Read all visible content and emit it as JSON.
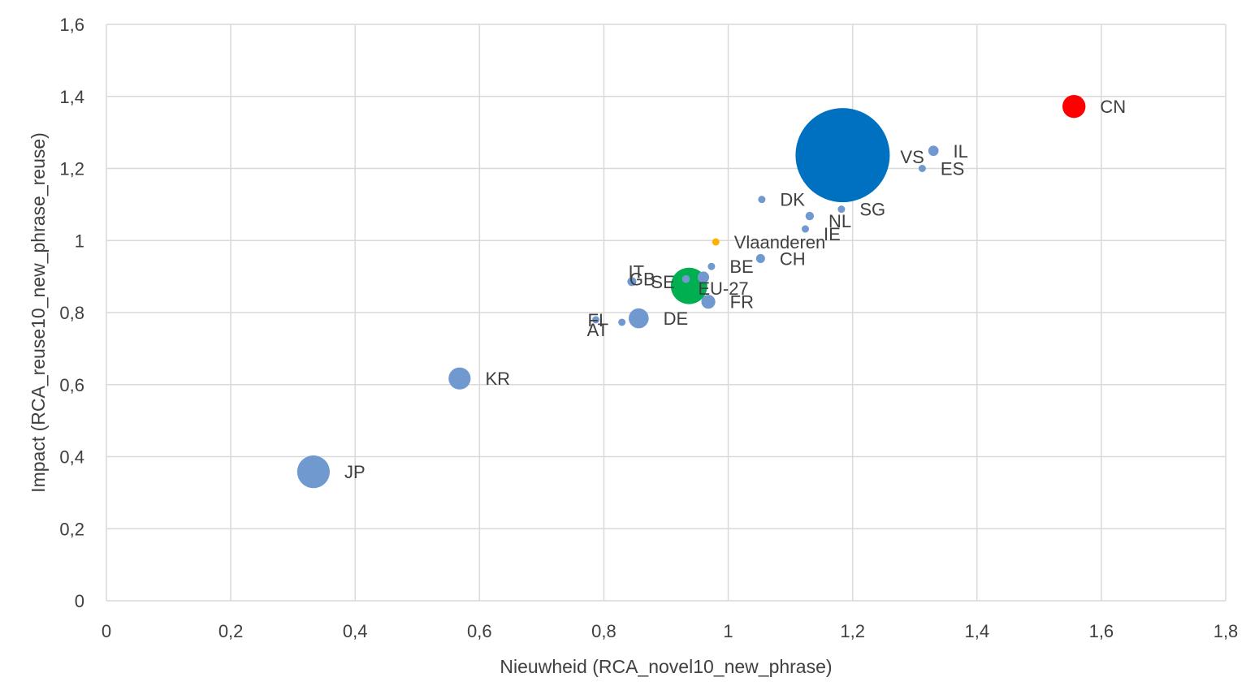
{
  "chart_data": {
    "type": "bubble",
    "title": "",
    "xlabel": "Nieuwheid (RCA_novel10_new_phrase)",
    "ylabel": "Impact (RCA_reuse10_new_phrase_reuse)",
    "xlim": [
      0,
      1.8
    ],
    "ylim": [
      0,
      1.6
    ],
    "xticks": [
      0,
      0.2,
      0.4,
      0.6,
      0.8,
      1,
      1.2,
      1.4,
      1.6,
      1.8
    ],
    "yticks": [
      0,
      0.2,
      0.4,
      0.6,
      0.8,
      1,
      1.2,
      1.4,
      1.6
    ],
    "xtick_labels": [
      "0",
      "0,2",
      "0,4",
      "0,6",
      "0,8",
      "1",
      "1,2",
      "1,4",
      "1,6",
      "1,8"
    ],
    "ytick_labels": [
      "0",
      "0,2",
      "0,4",
      "0,6",
      "0,8",
      "1",
      "1,2",
      "1,4",
      "1,6"
    ],
    "grid": true,
    "colors": {
      "default": "#7099cf",
      "VS": "#0070c0",
      "EU-27": "#00b050",
      "CN": "#ff0000",
      "Vlaanderen": "#ffb000",
      "grid": "#d9d9d9",
      "text": "#404040"
    },
    "points": [
      {
        "label": "VS",
        "x": 1.184,
        "y": 1.237,
        "size": 100
      },
      {
        "label": "EU-27",
        "x": 0.937,
        "y": 0.874,
        "size": 15
      },
      {
        "label": "CN",
        "x": 1.556,
        "y": 1.372,
        "size": 6
      },
      {
        "label": "JP",
        "x": 0.333,
        "y": 0.358,
        "size": 12
      },
      {
        "label": "KR",
        "x": 0.568,
        "y": 0.617,
        "size": 5.5
      },
      {
        "label": "DE",
        "x": 0.856,
        "y": 0.784,
        "size": 4.5
      },
      {
        "label": "FR",
        "x": 0.968,
        "y": 0.83,
        "size": 2.2
      },
      {
        "label": "GB",
        "x": 0.96,
        "y": 0.898,
        "size": 1.5
      },
      {
        "label": "IL",
        "x": 1.33,
        "y": 1.249,
        "size": 1.2
      },
      {
        "label": "CH",
        "x": 1.052,
        "y": 0.95,
        "size": 0.9
      },
      {
        "label": "NL",
        "x": 1.131,
        "y": 1.068,
        "size": 0.8
      },
      {
        "label": "SE",
        "x": 0.845,
        "y": 0.886,
        "size": 0.9
      },
      {
        "label": "IT",
        "x": 0.932,
        "y": 0.893,
        "size": 0.7
      },
      {
        "label": "BE",
        "x": 0.973,
        "y": 0.928,
        "size": 0.4
      },
      {
        "label": "DK",
        "x": 1.054,
        "y": 1.114,
        "size": 0.3
      },
      {
        "label": "SG",
        "x": 1.182,
        "y": 1.087,
        "size": 0.25
      },
      {
        "label": "ES",
        "x": 1.312,
        "y": 1.2,
        "size": 0.3
      },
      {
        "label": "IE",
        "x": 1.124,
        "y": 1.032,
        "size": 0.25
      },
      {
        "label": "FI",
        "x": 0.787,
        "y": 0.78,
        "size": 0.35
      },
      {
        "label": "AT",
        "x": 0.829,
        "y": 0.773,
        "size": 0.35
      },
      {
        "label": "Vlaanderen",
        "x": 0.98,
        "y": 0.996,
        "size": 0.2
      }
    ]
  }
}
